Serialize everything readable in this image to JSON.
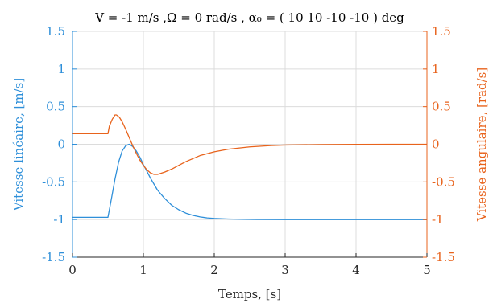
{
  "chart_data": {
    "type": "line",
    "title": "V = -1 m/s ,Ω = 0 rad/s , α₀ = ( 10 10 -10 -10 ) deg",
    "xlabel": "Temps, [s]",
    "ylabel_left": "Vitesse linéaire, [m/s]",
    "ylabel_right": "Vitesse angulaire, [rad/s]",
    "xlim": [
      0,
      5
    ],
    "ylim_left": [
      -1.5,
      1.5
    ],
    "ylim_right": [
      -1.5,
      1.5
    ],
    "x_ticks": [
      "0",
      "1",
      "2",
      "3",
      "4",
      "5"
    ],
    "y_ticks_left": [
      "-1.5",
      "-1",
      "-0.5",
      "0",
      "0.5",
      "1",
      "1.5"
    ],
    "y_ticks_right": [
      "-1.5",
      "-1",
      "-0.5",
      "0",
      "0.5",
      "1",
      "1.5"
    ],
    "grid": true,
    "colors": {
      "left": "#2e8fd9",
      "right": "#e8631c",
      "axis": "#262626",
      "grid": "#dcdcdc"
    },
    "series": [
      {
        "axis": "left",
        "x": [
          0,
          0.5,
          0.55,
          0.6,
          0.65,
          0.7,
          0.75,
          0.8,
          0.85,
          0.9,
          0.95,
          1.0,
          1.05,
          1.1,
          1.15,
          1.2,
          1.3,
          1.4,
          1.5,
          1.6,
          1.7,
          1.8,
          1.9,
          2.0,
          2.2,
          2.4,
          2.6,
          3.0,
          3.5,
          4.0,
          4.5,
          5.0
        ],
        "y": [
          -0.97,
          -0.97,
          -0.72,
          -0.46,
          -0.24,
          -0.09,
          -0.02,
          0.0,
          -0.03,
          -0.09,
          -0.17,
          -0.27,
          -0.36,
          -0.45,
          -0.53,
          -0.61,
          -0.72,
          -0.81,
          -0.87,
          -0.915,
          -0.945,
          -0.965,
          -0.978,
          -0.985,
          -0.993,
          -0.997,
          -0.999,
          -1.0,
          -1.0,
          -1.0,
          -1.0,
          -1.0
        ]
      },
      {
        "axis": "right",
        "x": [
          0,
          0.5,
          0.52,
          0.56,
          0.6,
          0.62,
          0.66,
          0.7,
          0.75,
          0.8,
          0.85,
          0.9,
          0.95,
          1.0,
          1.05,
          1.1,
          1.15,
          1.2,
          1.3,
          1.4,
          1.5,
          1.6,
          1.7,
          1.8,
          2.0,
          2.2,
          2.5,
          2.8,
          3.0,
          3.5,
          4.0,
          4.5,
          5.0
        ],
        "y": [
          0.14,
          0.14,
          0.24,
          0.33,
          0.39,
          0.39,
          0.36,
          0.3,
          0.2,
          0.09,
          -0.02,
          -0.12,
          -0.21,
          -0.28,
          -0.34,
          -0.38,
          -0.4,
          -0.4,
          -0.37,
          -0.33,
          -0.28,
          -0.23,
          -0.19,
          -0.15,
          -0.1,
          -0.065,
          -0.035,
          -0.017,
          -0.01,
          -0.004,
          -0.001,
          0.0,
          0.0
        ]
      }
    ]
  }
}
